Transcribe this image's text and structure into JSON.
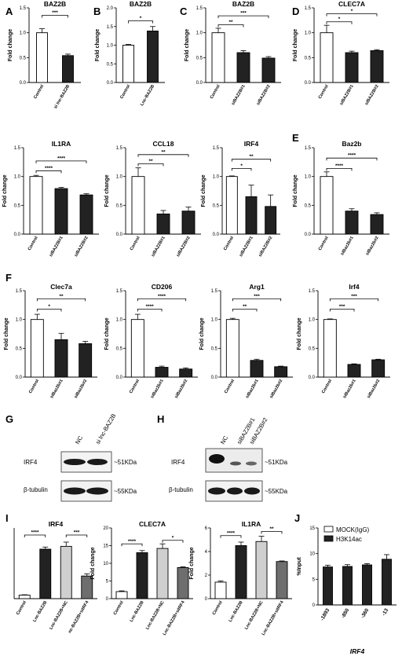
{
  "letters": {
    "A": "A",
    "B": "B",
    "C": "C",
    "D": "D",
    "E": "E",
    "F": "F",
    "G": "G",
    "H": "H",
    "I": "I",
    "J": "J"
  },
  "chart_data": [
    {
      "id": "A",
      "type": "bar",
      "title": "BAZ2B",
      "ylabel": "Fold change",
      "categories": [
        "Control",
        "si lnc-BAZ2B"
      ],
      "values": [
        1.0,
        0.54
      ],
      "errors": [
        0.08,
        0.03
      ],
      "fills": [
        "#ffffff",
        "#222222"
      ],
      "ylim": [
        0,
        1.5
      ],
      "yticks": [
        "0.0",
        "0.5",
        "1.0",
        "1.5"
      ],
      "sig": [
        {
          "from": 0,
          "to": 1,
          "label": "***",
          "level": 1.35
        }
      ]
    },
    {
      "id": "B",
      "type": "bar",
      "title": "BAZ2B",
      "ylabel": "Fold change",
      "categories": [
        "Control",
        "Lnc-BAZ2B"
      ],
      "values": [
        1.0,
        1.38
      ],
      "errors": [
        0.02,
        0.12
      ],
      "fills": [
        "#ffffff",
        "#222222"
      ],
      "ylim": [
        0,
        2.0
      ],
      "yticks": [
        "0.0",
        "0.5",
        "1.0",
        "1.5",
        "2.0"
      ],
      "sig": [
        {
          "from": 0,
          "to": 1,
          "label": "*",
          "level": 1.65
        }
      ]
    },
    {
      "id": "C",
      "type": "bar",
      "title": "BAZ2B",
      "ylabel": "Fold change",
      "categories": [
        "Control",
        "siBAZ2B#1",
        "siBAZ2B#2"
      ],
      "values": [
        1.0,
        0.6,
        0.49
      ],
      "errors": [
        0.09,
        0.04,
        0.03
      ],
      "fills": [
        "#ffffff",
        "#222222",
        "#222222"
      ],
      "ylim": [
        0,
        1.5
      ],
      "yticks": [
        "0.0",
        "0.5",
        "1.0",
        "1.5"
      ],
      "sig": [
        {
          "from": 0,
          "to": 1,
          "label": "**",
          "level": 1.16
        },
        {
          "from": 0,
          "to": 2,
          "label": "***",
          "level": 1.34
        }
      ]
    },
    {
      "id": "D",
      "type": "bar",
      "title": "CLEC7A",
      "ylabel": "Fold change",
      "categories": [
        "Control",
        "siBAZ2B#1",
        "siBAZ2B#2"
      ],
      "values": [
        1.0,
        0.6,
        0.64
      ],
      "errors": [
        0.15,
        0.03,
        0.02
      ],
      "fills": [
        "#ffffff",
        "#222222",
        "#222222"
      ],
      "ylim": [
        0,
        1.5
      ],
      "yticks": [
        "0.0",
        "0.5",
        "1.0",
        "1.5"
      ],
      "sig": [
        {
          "from": 0,
          "to": 1,
          "label": "*",
          "level": 1.22
        },
        {
          "from": 0,
          "to": 2,
          "label": "*",
          "level": 1.38
        }
      ]
    },
    {
      "id": "IL1RA",
      "type": "bar",
      "title": "IL1RA",
      "ylabel": "Fold change",
      "categories": [
        "Control",
        "siBAZ2B#1",
        "siBAZ2B#2"
      ],
      "values": [
        1.0,
        0.79,
        0.68
      ],
      "errors": [
        0.02,
        0.02,
        0.02
      ],
      "fills": [
        "#ffffff",
        "#222222",
        "#222222"
      ],
      "ylim": [
        0,
        1.5
      ],
      "yticks": [
        "0.0",
        "0.5",
        "1.0",
        "1.5"
      ],
      "sig": [
        {
          "from": 0,
          "to": 1,
          "label": "****",
          "level": 1.1
        },
        {
          "from": 0,
          "to": 2,
          "label": "****",
          "level": 1.27
        }
      ]
    },
    {
      "id": "CCL18",
      "type": "bar",
      "title": "CCL18",
      "ylabel": "Fold change",
      "categories": [
        "Control",
        "siBAZ2B#1",
        "siBAZ2B#2"
      ],
      "values": [
        1.0,
        0.35,
        0.4
      ],
      "errors": [
        0.15,
        0.06,
        0.07
      ],
      "fills": [
        "#ffffff",
        "#222222",
        "#222222"
      ],
      "ylim": [
        0,
        1.5
      ],
      "yticks": [
        "0.0",
        "0.5",
        "1.0",
        "1.5"
      ],
      "sig": [
        {
          "from": 0,
          "to": 1,
          "label": "**",
          "level": 1.22
        },
        {
          "from": 0,
          "to": 2,
          "label": "**",
          "level": 1.38
        }
      ]
    },
    {
      "id": "IRF4",
      "type": "bar",
      "title": "IRF4",
      "ylabel": "Fold change",
      "categories": [
        "Control",
        "siBAZ2B#1",
        "siBAZ2B#2"
      ],
      "values": [
        1.0,
        0.65,
        0.48
      ],
      "errors": [
        0.01,
        0.2,
        0.2
      ],
      "fills": [
        "#ffffff",
        "#222222",
        "#222222"
      ],
      "ylim": [
        0,
        1.5
      ],
      "yticks": [
        "0.0",
        "0.5",
        "1.0",
        "1.5"
      ],
      "sig": [
        {
          "from": 0,
          "to": 1,
          "label": "*",
          "level": 1.14
        },
        {
          "from": 0,
          "to": 2,
          "label": "**",
          "level": 1.3
        }
      ]
    },
    {
      "id": "E",
      "type": "bar",
      "title": "Baz2b",
      "ylabel": "Fold change",
      "categories": [
        "Control",
        "siBaz2b#1",
        "siBaz2b#2"
      ],
      "values": [
        1.0,
        0.4,
        0.34
      ],
      "errors": [
        0.08,
        0.04,
        0.03
      ],
      "fills": [
        "#ffffff",
        "#222222",
        "#222222"
      ],
      "ylim": [
        0,
        1.5
      ],
      "yticks": [
        "0.0",
        "0.5",
        "1.0",
        "1.5"
      ],
      "sig": [
        {
          "from": 0,
          "to": 1,
          "label": "****",
          "level": 1.14
        },
        {
          "from": 0,
          "to": 2,
          "label": "****",
          "level": 1.32
        }
      ]
    },
    {
      "id": "F1",
      "type": "bar",
      "title": "Clec7a",
      "ylabel": "Fold change",
      "categories": [
        "Control",
        "siBaz2b#1",
        "siBaz2b#2"
      ],
      "values": [
        1.0,
        0.65,
        0.58
      ],
      "errors": [
        0.09,
        0.11,
        0.04
      ],
      "fills": [
        "#ffffff",
        "#222222",
        "#222222"
      ],
      "ylim": [
        0,
        1.5
      ],
      "yticks": [
        "0.0",
        "0.5",
        "1.0",
        "1.5"
      ],
      "sig": [
        {
          "from": 0,
          "to": 1,
          "label": "*",
          "level": 1.18
        },
        {
          "from": 0,
          "to": 2,
          "label": "**",
          "level": 1.36
        }
      ]
    },
    {
      "id": "F2",
      "type": "bar",
      "title": "CD206",
      "ylabel": "Fold change",
      "categories": [
        "Control",
        "siBaz2b#1",
        "siBaz2b#2"
      ],
      "values": [
        1.0,
        0.17,
        0.14
      ],
      "errors": [
        0.09,
        0.02,
        0.02
      ],
      "fills": [
        "#ffffff",
        "#222222",
        "#222222"
      ],
      "ylim": [
        0,
        1.5
      ],
      "yticks": [
        "0.0",
        "0.5",
        "1.0",
        "1.5"
      ],
      "sig": [
        {
          "from": 0,
          "to": 1,
          "label": "****",
          "level": 1.18
        },
        {
          "from": 0,
          "to": 2,
          "label": "****",
          "level": 1.36
        }
      ]
    },
    {
      "id": "F3",
      "type": "bar",
      "title": "Arg1",
      "ylabel": "Fold change",
      "categories": [
        "Control",
        "siBaz2b#1",
        "siBaz2b#2"
      ],
      "values": [
        1.0,
        0.29,
        0.18
      ],
      "errors": [
        0.02,
        0.02,
        0.01
      ],
      "fills": [
        "#ffffff",
        "#222222",
        "#222222"
      ],
      "ylim": [
        0,
        1.5
      ],
      "yticks": [
        "0.0",
        "0.5",
        "1.0",
        "1.5"
      ],
      "sig": [
        {
          "from": 0,
          "to": 1,
          "label": "**",
          "level": 1.18
        },
        {
          "from": 0,
          "to": 2,
          "label": "***",
          "level": 1.36
        }
      ]
    },
    {
      "id": "F4",
      "type": "bar",
      "title": "Irf4",
      "ylabel": "Fold change",
      "categories": [
        "Control",
        "siBaz2b#1",
        "siBaz2b#2"
      ],
      "values": [
        1.0,
        0.22,
        0.3
      ],
      "errors": [
        0.01,
        0.01,
        0.01
      ],
      "fills": [
        "#ffffff",
        "#222222",
        "#222222"
      ],
      "ylim": [
        0,
        1.5
      ],
      "yticks": [
        "0.0",
        "0.5",
        "1.0",
        "1.5"
      ],
      "sig": [
        {
          "from": 0,
          "to": 1,
          "label": "***",
          "level": 1.18
        },
        {
          "from": 0,
          "to": 2,
          "label": "***",
          "level": 1.36
        }
      ]
    },
    {
      "id": "I1",
      "type": "bar",
      "title": "IRF4",
      "ylabel": "",
      "categories": [
        "Control",
        "Lnc-BAZ2B",
        "Lnc-BAZ2B+NC",
        "nc-BAZ2B+siIRF4"
      ],
      "values": [
        5,
        70,
        74,
        32
      ],
      "errors": [
        0.5,
        3,
        6,
        3
      ],
      "fills": [
        "#ffffff",
        "#222222",
        "#cfcfcf",
        "#6e6e6e"
      ],
      "ylim": [
        0,
        100
      ],
      "yticks": [],
      "sig": [
        {
          "from": 0,
          "to": 1,
          "label": "****",
          "level": 90
        },
        {
          "from": 2,
          "to": 3,
          "label": "***",
          "level": 90
        }
      ]
    },
    {
      "id": "I2",
      "type": "bar",
      "title": "CLEC7A",
      "ylabel": "Fold change",
      "categories": [
        "Control",
        "Lnc-BAZ2B",
        "Lnc-BAZ2B+NC",
        "Lnc-BAZ2B+siIRF4"
      ],
      "values": [
        2,
        13,
        14.2,
        8.8
      ],
      "errors": [
        0.2,
        0.6,
        1.3,
        0.2
      ],
      "fills": [
        "#ffffff",
        "#222222",
        "#cfcfcf",
        "#6e6e6e"
      ],
      "ylim": [
        0,
        20
      ],
      "yticks": [
        "0",
        "5",
        "10",
        "15",
        "20"
      ],
      "sig": [
        {
          "from": 0,
          "to": 1,
          "label": "****",
          "level": 15.5
        },
        {
          "from": 2,
          "to": 3,
          "label": "*",
          "level": 16.5
        }
      ]
    },
    {
      "id": "I3",
      "type": "bar",
      "title": "IL1RA",
      "ylabel": "Fold change",
      "categories": [
        "Control",
        "Lnc-BAZ2B",
        "Lnc-BAZ2B+NC",
        "Lnc-BAZ2B+siIRF4"
      ],
      "values": [
        1.4,
        4.5,
        4.85,
        3.15
      ],
      "errors": [
        0.1,
        0.3,
        0.45,
        0.05
      ],
      "fills": [
        "#ffffff",
        "#222222",
        "#cfcfcf",
        "#6e6e6e"
      ],
      "ylim": [
        0,
        6
      ],
      "yticks": [
        "0",
        "2",
        "4",
        "6"
      ],
      "sig": [
        {
          "from": 0,
          "to": 1,
          "label": "****",
          "level": 5.35
        },
        {
          "from": 2,
          "to": 3,
          "label": "**",
          "level": 5.7
        }
      ]
    },
    {
      "id": "J",
      "type": "bar",
      "title": "",
      "ylabel": "%Input",
      "xlabel": "IRF4",
      "categories": [
        "-1893",
        "-850",
        "-360",
        "-13"
      ],
      "series": [
        {
          "name": "MOCK(IgG)",
          "values": [
            0,
            0,
            0,
            0
          ]
        },
        {
          "name": "H3K14ac",
          "values": [
            7.4,
            7.5,
            7.8,
            8.9
          ],
          "errors": [
            0.35,
            0.35,
            0.25,
            0.9
          ]
        }
      ],
      "fills": [
        "#222222",
        "#222222",
        "#222222",
        "#222222"
      ],
      "ylim": [
        0,
        15
      ],
      "yticks": [
        "0",
        "5",
        "10",
        "15"
      ],
      "sig": []
    }
  ],
  "blotG": {
    "lanes": [
      "NC",
      "si lnc-BAZ2B"
    ],
    "rows": [
      "IRF4",
      "β-tubulin"
    ],
    "sizes": [
      "~51KDa",
      "~55KDa"
    ]
  },
  "blotH": {
    "lanes": [
      "NC",
      "siBAZ2B#1",
      "siBAZ2B#2"
    ],
    "rows": [
      "IRF4",
      "β-tubulin"
    ],
    "sizes": [
      "~51KDa",
      "~55KDa"
    ]
  },
  "legendJ": [
    "MOCK(IgG)",
    "H3K14ac"
  ]
}
